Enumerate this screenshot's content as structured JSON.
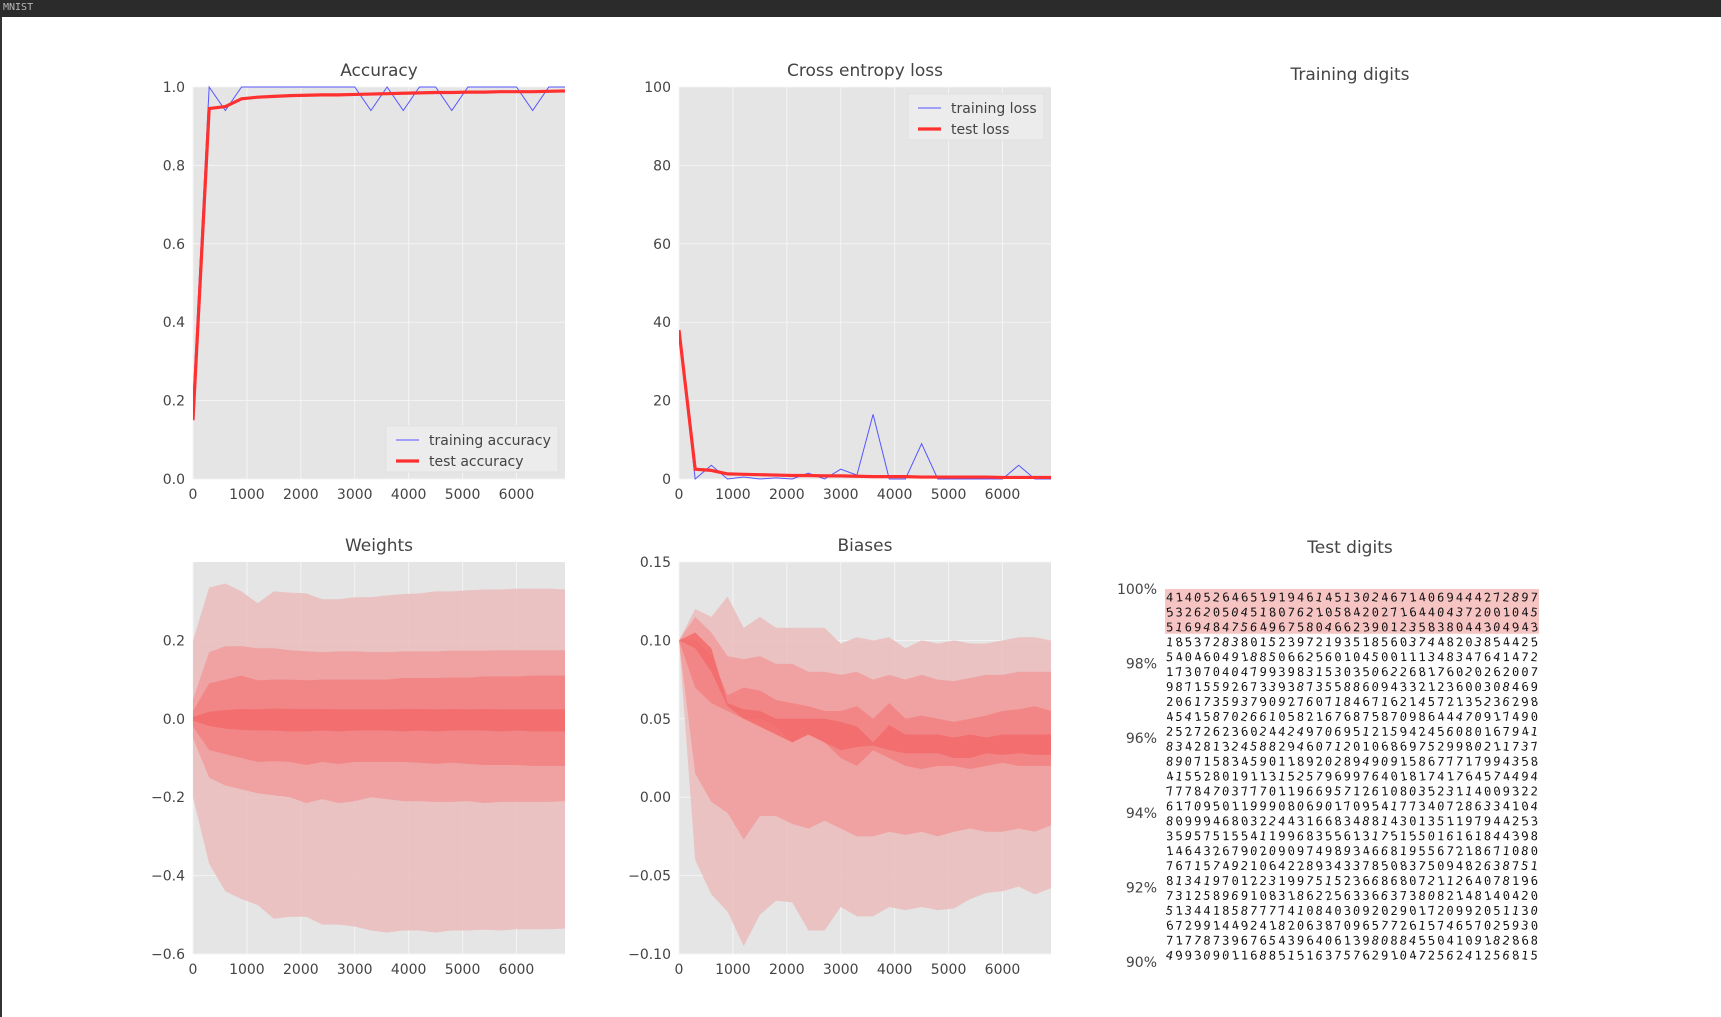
{
  "window": {
    "title": "MNIST"
  },
  "colors": {
    "plot_bg": "#e5e5e5",
    "grid": "#f4f4f4",
    "train": "#5555ff",
    "test": "#ff3030",
    "band_outer": "#ebbcbc",
    "band_mid": "#f19b9b",
    "band_inner": "#f28080",
    "band_core": "#f36a6a",
    "highlight": "#f7c4c4"
  },
  "chart_data": [
    {
      "id": "accuracy",
      "type": "line",
      "title": "Accuracy",
      "xlabel": "",
      "ylabel": "",
      "xlim": [
        0,
        6900
      ],
      "ylim": [
        0.0,
        1.0
      ],
      "xticks": [
        "0",
        "1000",
        "2000",
        "3000",
        "4000",
        "5000",
        "6000"
      ],
      "yticks": [
        "0.0",
        "0.2",
        "0.4",
        "0.6",
        "0.8",
        "1.0"
      ],
      "legend": "bottom-right",
      "grid": true,
      "series": [
        {
          "name": "training accuracy",
          "style": "thin-blue",
          "x": [
            0,
            300,
            600,
            900,
            1200,
            1500,
            1800,
            2100,
            2400,
            2700,
            3000,
            3300,
            3600,
            3900,
            4200,
            4500,
            4800,
            5100,
            5400,
            5700,
            6000,
            6300,
            6600,
            6900
          ],
          "y": [
            0.2,
            1.0,
            0.94,
            1.0,
            1.0,
            1.0,
            1.0,
            1.0,
            1.0,
            1.0,
            1.0,
            0.94,
            1.0,
            0.94,
            1.0,
            1.0,
            0.94,
            1.0,
            1.0,
            1.0,
            1.0,
            0.94,
            1.0,
            1.0
          ]
        },
        {
          "name": "test accuracy",
          "style": "thick-red",
          "x": [
            0,
            300,
            600,
            900,
            1200,
            1500,
            1800,
            2100,
            2400,
            2700,
            3000,
            3300,
            3600,
            3900,
            4200,
            4500,
            4800,
            5100,
            5400,
            5700,
            6000,
            6300,
            6600,
            6900
          ],
          "y": [
            0.15,
            0.945,
            0.95,
            0.97,
            0.974,
            0.976,
            0.978,
            0.979,
            0.98,
            0.98,
            0.981,
            0.982,
            0.983,
            0.984,
            0.985,
            0.986,
            0.986,
            0.987,
            0.987,
            0.988,
            0.988,
            0.988,
            0.989,
            0.99
          ]
        }
      ]
    },
    {
      "id": "loss",
      "type": "line",
      "title": "Cross entropy loss",
      "xlabel": "",
      "ylabel": "",
      "xlim": [
        0,
        6900
      ],
      "ylim": [
        0,
        100
      ],
      "xticks": [
        "0",
        "1000",
        "2000",
        "3000",
        "4000",
        "5000",
        "6000"
      ],
      "yticks": [
        "0",
        "20",
        "40",
        "60",
        "80",
        "100"
      ],
      "legend": "top-right",
      "grid": true,
      "series": [
        {
          "name": "training loss",
          "style": "thin-blue",
          "x": [
            0,
            300,
            600,
            900,
            1200,
            1500,
            1800,
            2100,
            2400,
            2700,
            3000,
            3300,
            3600,
            3900,
            4200,
            4500,
            4800,
            5100,
            5400,
            5700,
            6000,
            6300,
            6600,
            6900
          ],
          "y": [
            38,
            0,
            3.5,
            0,
            0.5,
            0,
            0.3,
            0,
            1.5,
            0,
            2.5,
            1,
            16.5,
            0,
            0,
            9,
            0,
            0,
            0,
            0,
            0,
            3.5,
            0,
            0
          ]
        },
        {
          "name": "test loss",
          "style": "thick-red",
          "x": [
            0,
            300,
            600,
            900,
            1200,
            1500,
            1800,
            2100,
            2400,
            2700,
            3000,
            3300,
            3600,
            3900,
            4200,
            4500,
            4800,
            5100,
            5400,
            5700,
            6000,
            6300,
            6600,
            6900
          ],
          "y": [
            38,
            2.5,
            2.2,
            1.3,
            1.2,
            1.1,
            1.0,
            0.9,
            0.9,
            0.8,
            0.8,
            0.7,
            0.6,
            0.6,
            0.6,
            0.5,
            0.5,
            0.5,
            0.5,
            0.5,
            0.4,
            0.4,
            0.4,
            0.4
          ]
        }
      ]
    },
    {
      "id": "weights",
      "type": "area",
      "title": "Weights",
      "xlabel": "",
      "ylabel": "",
      "xlim": [
        0,
        6900
      ],
      "ylim": [
        -0.6,
        0.4
      ],
      "xticks": [
        "0",
        "1000",
        "2000",
        "3000",
        "4000",
        "5000",
        "6000"
      ],
      "yticks": [
        "0.2",
        "0.0",
        "−0.2",
        "−0.4",
        "−0.6"
      ],
      "grid": true,
      "x": [
        0,
        300,
        600,
        900,
        1200,
        1500,
        1800,
        2100,
        2400,
        2700,
        3000,
        3300,
        3600,
        3900,
        4200,
        4500,
        4800,
        5100,
        5400,
        5700,
        6000,
        6300,
        6600,
        6900
      ],
      "bands": [
        {
          "level": "outer",
          "hi": [
            0.2,
            0.335,
            0.345,
            0.325,
            0.295,
            0.325,
            0.322,
            0.32,
            0.305,
            0.305,
            0.31,
            0.31,
            0.315,
            0.318,
            0.32,
            0.325,
            0.325,
            0.328,
            0.33,
            0.33,
            0.332,
            0.332,
            0.332,
            0.33
          ],
          "lo": [
            -0.2,
            -0.37,
            -0.44,
            -0.46,
            -0.475,
            -0.51,
            -0.505,
            -0.505,
            -0.525,
            -0.525,
            -0.53,
            -0.54,
            -0.545,
            -0.54,
            -0.54,
            -0.545,
            -0.54,
            -0.54,
            -0.538,
            -0.54,
            -0.537,
            -0.537,
            -0.537,
            -0.535
          ]
        },
        {
          "level": "mid",
          "hi": [
            0.05,
            0.17,
            0.185,
            0.185,
            0.18,
            0.18,
            0.175,
            0.172,
            0.17,
            0.172,
            0.172,
            0.17,
            0.17,
            0.172,
            0.172,
            0.172,
            0.174,
            0.174,
            0.174,
            0.175,
            0.175,
            0.175,
            0.175,
            0.175
          ],
          "lo": [
            -0.05,
            -0.15,
            -0.17,
            -0.18,
            -0.19,
            -0.195,
            -0.2,
            -0.215,
            -0.205,
            -0.215,
            -0.21,
            -0.2,
            -0.205,
            -0.21,
            -0.21,
            -0.212,
            -0.212,
            -0.21,
            -0.215,
            -0.212,
            -0.212,
            -0.212,
            -0.212,
            -0.21
          ]
        },
        {
          "level": "inner",
          "hi": [
            0.02,
            0.09,
            0.1,
            0.11,
            0.098,
            0.1,
            0.1,
            0.098,
            0.1,
            0.1,
            0.1,
            0.1,
            0.1,
            0.104,
            0.104,
            0.104,
            0.105,
            0.105,
            0.108,
            0.108,
            0.108,
            0.11,
            0.11,
            0.11
          ],
          "lo": [
            -0.02,
            -0.08,
            -0.09,
            -0.1,
            -0.11,
            -0.108,
            -0.11,
            -0.118,
            -0.11,
            -0.115,
            -0.11,
            -0.11,
            -0.11,
            -0.11,
            -0.112,
            -0.115,
            -0.112,
            -0.115,
            -0.118,
            -0.118,
            -0.118,
            -0.12,
            -0.12,
            -0.12
          ]
        },
        {
          "level": "core",
          "hi": [
            0.005,
            0.018,
            0.022,
            0.025,
            0.024,
            0.026,
            0.025,
            0.025,
            0.025,
            0.024,
            0.024,
            0.024,
            0.024,
            0.025,
            0.025,
            0.024,
            0.025,
            0.024,
            0.025,
            0.024,
            0.024,
            0.024,
            0.024,
            0.024
          ],
          "lo": [
            -0.005,
            -0.018,
            -0.025,
            -0.028,
            -0.03,
            -0.03,
            -0.032,
            -0.032,
            -0.03,
            -0.032,
            -0.03,
            -0.03,
            -0.03,
            -0.032,
            -0.03,
            -0.032,
            -0.03,
            -0.03,
            -0.03,
            -0.032,
            -0.03,
            -0.032,
            -0.032,
            -0.032
          ]
        }
      ]
    },
    {
      "id": "biases",
      "type": "area",
      "title": "Biases",
      "xlabel": "",
      "ylabel": "",
      "xlim": [
        0,
        6900
      ],
      "ylim": [
        -0.1,
        0.15
      ],
      "xticks": [
        "0",
        "1000",
        "2000",
        "3000",
        "4000",
        "5000",
        "6000"
      ],
      "yticks": [
        "0.15",
        "0.10",
        "0.05",
        "0.00",
        "−0.05",
        "−0.10"
      ],
      "grid": true,
      "x": [
        0,
        300,
        600,
        900,
        1200,
        1500,
        1800,
        2100,
        2400,
        2700,
        3000,
        3300,
        3600,
        3900,
        4200,
        4500,
        4800,
        5100,
        5400,
        5700,
        6000,
        6300,
        6600,
        6900
      ],
      "bands": [
        {
          "level": "outer",
          "hi": [
            0.1,
            0.12,
            0.115,
            0.128,
            0.108,
            0.115,
            0.108,
            0.108,
            0.108,
            0.108,
            0.098,
            0.102,
            0.1,
            0.102,
            0.095,
            0.1,
            0.098,
            0.1,
            0.098,
            0.098,
            0.1,
            0.102,
            0.102,
            0.1
          ],
          "lo": [
            0.1,
            -0.04,
            -0.062,
            -0.073,
            -0.095,
            -0.075,
            -0.066,
            -0.067,
            -0.085,
            -0.085,
            -0.07,
            -0.076,
            -0.076,
            -0.07,
            -0.072,
            -0.07,
            -0.072,
            -0.071,
            -0.065,
            -0.061,
            -0.06,
            -0.057,
            -0.062,
            -0.058
          ]
        },
        {
          "level": "mid",
          "hi": [
            0.1,
            0.115,
            0.105,
            0.09,
            0.088,
            0.09,
            0.085,
            0.085,
            0.08,
            0.08,
            0.078,
            0.08,
            0.075,
            0.078,
            0.075,
            0.078,
            0.075,
            0.074,
            0.076,
            0.078,
            0.078,
            0.08,
            0.08,
            0.08
          ],
          "lo": [
            0.1,
            0.015,
            -0.003,
            -0.01,
            -0.027,
            -0.012,
            -0.012,
            -0.017,
            -0.02,
            -0.015,
            -0.02,
            -0.025,
            -0.025,
            -0.022,
            -0.024,
            -0.022,
            -0.025,
            -0.022,
            -0.02,
            -0.022,
            -0.022,
            -0.02,
            -0.022,
            -0.018
          ]
        },
        {
          "level": "inner",
          "hi": [
            0.1,
            0.1,
            0.09,
            0.065,
            0.07,
            0.068,
            0.062,
            0.06,
            0.058,
            0.055,
            0.055,
            0.058,
            0.05,
            0.06,
            0.05,
            0.052,
            0.05,
            0.048,
            0.05,
            0.052,
            0.055,
            0.056,
            0.058,
            0.055
          ],
          "lo": [
            0.1,
            0.07,
            0.06,
            0.055,
            0.05,
            0.05,
            0.045,
            0.035,
            0.04,
            0.035,
            0.025,
            0.02,
            0.03,
            0.025,
            0.02,
            0.018,
            0.02,
            0.02,
            0.018,
            0.02,
            0.022,
            0.02,
            0.02,
            0.02
          ]
        },
        {
          "level": "core",
          "hi": [
            0.1,
            0.105,
            0.095,
            0.06,
            0.056,
            0.055,
            0.05,
            0.05,
            0.05,
            0.05,
            0.048,
            0.045,
            0.035,
            0.046,
            0.04,
            0.04,
            0.04,
            0.038,
            0.04,
            0.038,
            0.04,
            0.04,
            0.04,
            0.04
          ],
          "lo": [
            0.1,
            0.095,
            0.08,
            0.058,
            0.05,
            0.045,
            0.04,
            0.035,
            0.04,
            0.035,
            0.03,
            0.032,
            0.033,
            0.03,
            0.028,
            0.028,
            0.028,
            0.025,
            0.025,
            0.028,
            0.027,
            0.028,
            0.027,
            0.027
          ]
        }
      ]
    }
  ],
  "digits_panels": {
    "training": {
      "title": "Training digits"
    },
    "test": {
      "title": "Test digits",
      "yticks": [
        "100%",
        "98%",
        "96%",
        "94%",
        "92%",
        "90%"
      ],
      "grid": {
        "rows": 25,
        "cols": 40,
        "highlight_rows": 3
      }
    }
  }
}
